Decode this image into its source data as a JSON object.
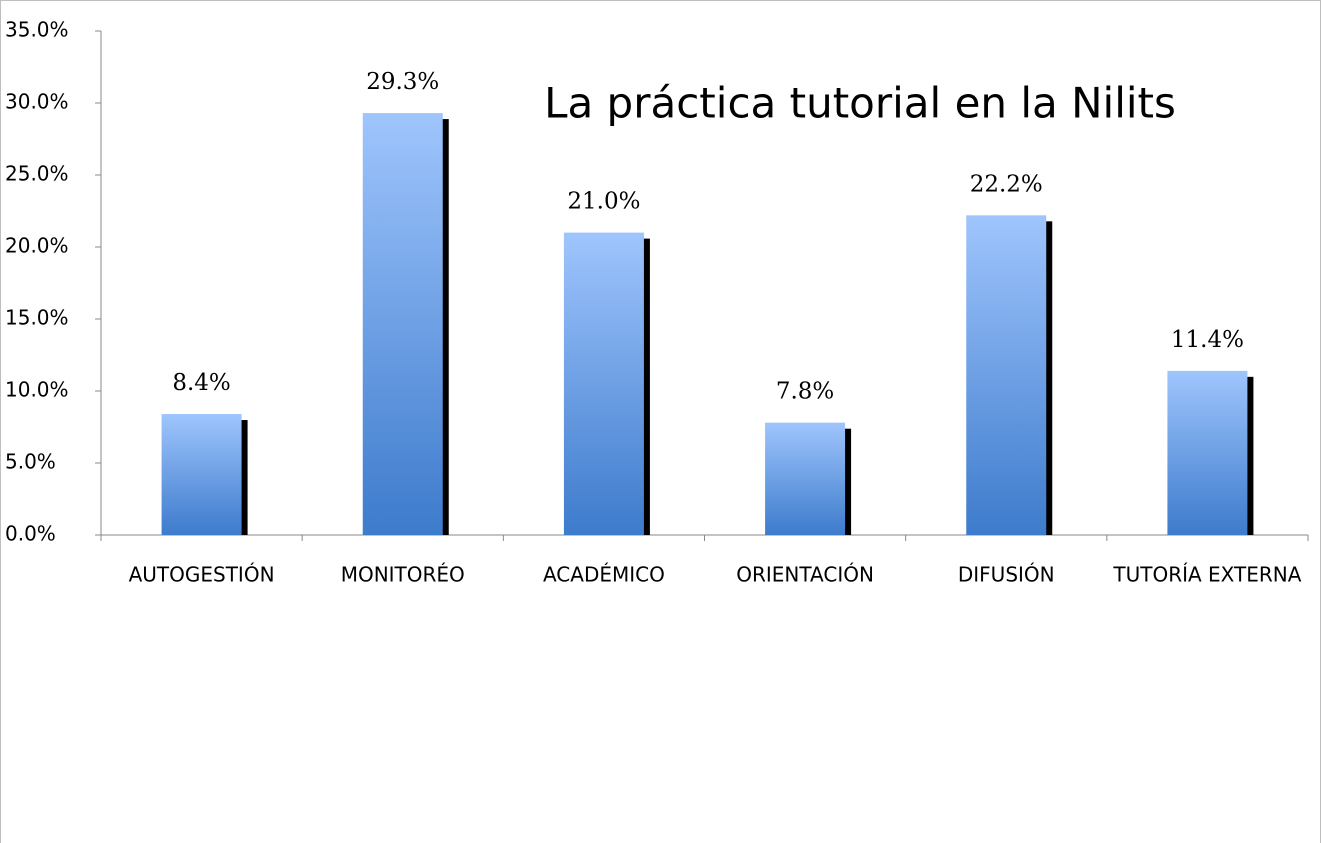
{
  "chart_data": {
    "type": "bar",
    "title": "La práctica tutorial en la Nilits",
    "categories": [
      "AUTOGESTIÓN",
      "MONITORÉO",
      "ACADÉMICO",
      "ORIENTACIÓN",
      "DIFUSIÓN",
      "TUTORÍA EXTERNA"
    ],
    "values": [
      8.4,
      29.3,
      21.0,
      7.8,
      22.2,
      11.4
    ],
    "value_labels": [
      "8.4%",
      "29.3%",
      "21.0%",
      "7.8%",
      "22.2%",
      "11.4%"
    ],
    "color": "#4a86d6",
    "ylim": [
      0,
      35
    ],
    "yticks": [
      {
        "value": 0,
        "label": "0.0%"
      },
      {
        "value": 5,
        "label": "5.0%"
      },
      {
        "value": 10,
        "label": "10.0%"
      },
      {
        "value": 15,
        "label": "15.0%"
      },
      {
        "value": 20,
        "label": "20.0%"
      },
      {
        "value": 25,
        "label": "25.0%"
      },
      {
        "value": 30,
        "label": "30.0%"
      },
      {
        "value": 35,
        "label": "35.0%"
      }
    ],
    "grid": false
  }
}
